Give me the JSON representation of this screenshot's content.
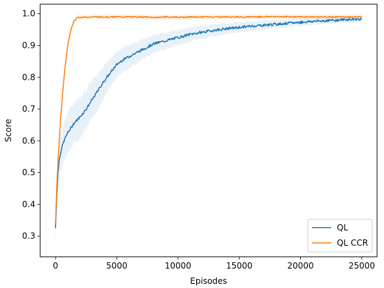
{
  "chart_data": {
    "type": "line",
    "title": "",
    "xlabel": "Episodes",
    "ylabel": "Score",
    "xlim": [
      -1250,
      26250
    ],
    "ylim": [
      0.235,
      1.03
    ],
    "xticks": [
      0,
      5000,
      10000,
      15000,
      20000,
      25000
    ],
    "xtick_labels": [
      "0",
      "5000",
      "10000",
      "15000",
      "20000",
      "25000"
    ],
    "yticks": [
      0.3,
      0.4,
      0.5,
      0.6,
      0.7,
      0.8,
      0.9,
      1.0
    ],
    "ytick_labels": [
      "0.3",
      "0.4",
      "0.5",
      "0.6",
      "0.7",
      "0.8",
      "0.9",
      "1.0"
    ],
    "grid": false,
    "legend_position": "bottom-right",
    "series": [
      {
        "name": "QL",
        "color": "#1f77b4",
        "band_color": "#1f77b4",
        "x": [
          0,
          100,
          200,
          300,
          400,
          600,
          800,
          1000,
          1250,
          1500,
          1750,
          2000,
          2500,
          3000,
          3500,
          4000,
          4500,
          5000,
          5500,
          6000,
          6500,
          7000,
          7500,
          8000,
          9000,
          10000,
          11000,
          12000,
          13000,
          14000,
          15000,
          16000,
          17000,
          18000,
          19000,
          20000,
          21000,
          22000,
          23000,
          24000,
          25000
        ],
        "y": [
          0.325,
          0.43,
          0.5,
          0.54,
          0.56,
          0.59,
          0.61,
          0.625,
          0.64,
          0.655,
          0.665,
          0.675,
          0.7,
          0.73,
          0.76,
          0.79,
          0.815,
          0.84,
          0.855,
          0.865,
          0.875,
          0.885,
          0.895,
          0.905,
          0.915,
          0.925,
          0.935,
          0.942,
          0.948,
          0.953,
          0.957,
          0.961,
          0.964,
          0.967,
          0.97,
          0.973,
          0.976,
          0.978,
          0.98,
          0.982,
          0.983
        ],
        "band_half_width": [
          0.05,
          0.06,
          0.06,
          0.06,
          0.06,
          0.06,
          0.06,
          0.065,
          0.065,
          0.065,
          0.065,
          0.065,
          0.06,
          0.06,
          0.055,
          0.05,
          0.045,
          0.04,
          0.038,
          0.036,
          0.034,
          0.032,
          0.03,
          0.028,
          0.026,
          0.024,
          0.022,
          0.02,
          0.018,
          0.017,
          0.016,
          0.015,
          0.014,
          0.013,
          0.012,
          0.011,
          0.011,
          0.01,
          0.01,
          0.01,
          0.01
        ]
      },
      {
        "name": "QL CCR",
        "color": "#ff7f0e",
        "band_color": "#ff7f0e",
        "x": [
          0,
          100,
          200,
          300,
          400,
          500,
          600,
          700,
          800,
          900,
          1000,
          1100,
          1200,
          1300,
          1400,
          1500,
          1600,
          1700,
          1800,
          2000,
          2500,
          3000,
          4000,
          5000,
          6000,
          7000,
          8000,
          9000,
          10000,
          12000,
          14000,
          16000,
          18000,
          20000,
          22000,
          24000,
          25000
        ],
        "y": [
          0.34,
          0.45,
          0.53,
          0.6,
          0.66,
          0.71,
          0.76,
          0.8,
          0.84,
          0.87,
          0.9,
          0.92,
          0.94,
          0.955,
          0.965,
          0.975,
          0.98,
          0.985,
          0.988,
          0.989,
          0.989,
          0.99,
          0.99,
          0.99,
          0.99,
          0.99,
          0.988,
          0.99,
          0.989,
          0.99,
          0.99,
          0.99,
          0.991,
          0.99,
          0.99,
          0.99,
          0.99
        ],
        "band_half_width": [
          0.02,
          0.02,
          0.02,
          0.02,
          0.02,
          0.02,
          0.02,
          0.02,
          0.02,
          0.02,
          0.015,
          0.015,
          0.012,
          0.01,
          0.01,
          0.01,
          0.008,
          0.008,
          0.008,
          0.008,
          0.008,
          0.008,
          0.008,
          0.008,
          0.008,
          0.008,
          0.008,
          0.008,
          0.008,
          0.008,
          0.008,
          0.008,
          0.008,
          0.008,
          0.008,
          0.008,
          0.008
        ]
      }
    ]
  }
}
